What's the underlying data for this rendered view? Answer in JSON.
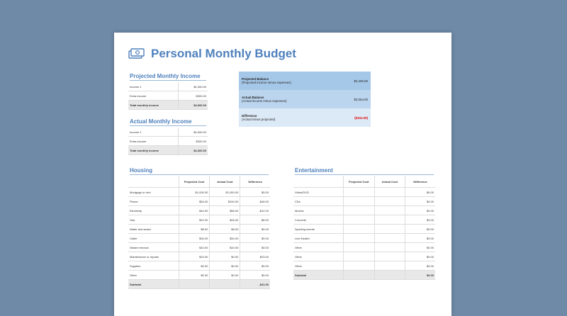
{
  "doc": {
    "title": "Personal Monthly Budget"
  },
  "projected_income": {
    "title": "Projected Monthly Income",
    "rows": [
      {
        "label": "Income 1",
        "value": "$4,300.00"
      },
      {
        "label": "Extra income",
        "value": "$300.00"
      }
    ],
    "total": {
      "label": "Total monthly income",
      "value": "$4,600.00"
    }
  },
  "actual_income": {
    "title": "Actual Monthly Income",
    "rows": [
      {
        "label": "Income 1",
        "value": "$4,000.00"
      },
      {
        "label": "Extra income",
        "value": "$300.00"
      }
    ],
    "total": {
      "label": "Total monthly income",
      "value": "$4,300.00"
    }
  },
  "balance": {
    "projected": {
      "label": "Projected Balance",
      "sub": "(Projected income minus expenses)",
      "value": "$3,405.00"
    },
    "actual": {
      "label": "Actual Balance",
      "sub": "(Actual income minus expenses)",
      "value": "$3,064.00"
    },
    "difference": {
      "label": "Difference",
      "sub": "(Actual minus projected)",
      "value": "($341.00)"
    }
  },
  "housing": {
    "title": "Housing",
    "headers": [
      "",
      "Projected Cost",
      "Actual Cost",
      "Difference"
    ],
    "rows": [
      [
        "Mortgage or rent",
        "$1,000.00",
        "$1,000.00",
        "$0.00"
      ],
      [
        "Phone",
        "$54.00",
        "$100.00",
        "-$46.00"
      ],
      [
        "Electricity",
        "$44.00",
        "$56.00",
        "-$12.00"
      ],
      [
        "Gas",
        "$22.00",
        "$28.00",
        "-$6.00"
      ],
      [
        "Water and sewer",
        "$8.00",
        "$8.00",
        "$0.00"
      ],
      [
        "Cable",
        "$34.00",
        "$34.00",
        "$0.00"
      ],
      [
        "Waste removal",
        "$10.00",
        "$10.00",
        "$0.00"
      ],
      [
        "Maintenance or repairs",
        "$23.00",
        "$0.00",
        "$23.00"
      ],
      [
        "Supplies",
        "$0.00",
        "$0.00",
        "$0.00"
      ],
      [
        "Other",
        "$0.00",
        "$0.00",
        "$0.00"
      ]
    ],
    "subtotal": [
      "Subtotal",
      "",
      "",
      "-$41.00"
    ]
  },
  "entertainment": {
    "title": "Entertainment",
    "headers": [
      "",
      "Projected Cost",
      "Actual Cost",
      "Difference"
    ],
    "rows": [
      [
        "Video/DVD",
        "",
        "",
        "$0.00"
      ],
      [
        "CDs",
        "",
        "",
        "$0.00"
      ],
      [
        "Movies",
        "",
        "",
        "$0.00"
      ],
      [
        "Concerts",
        "",
        "",
        "$0.00"
      ],
      [
        "Sporting events",
        "",
        "",
        "$0.00"
      ],
      [
        "Live theater",
        "",
        "",
        "$0.00"
      ],
      [
        "Other",
        "",
        "",
        "$0.00"
      ],
      [
        "Other",
        "",
        "",
        "$0.00"
      ],
      [
        "Other",
        "",
        "",
        "$0.00"
      ]
    ],
    "subtotal": [
      "Subtotal",
      "",
      "",
      "$0.00"
    ]
  }
}
